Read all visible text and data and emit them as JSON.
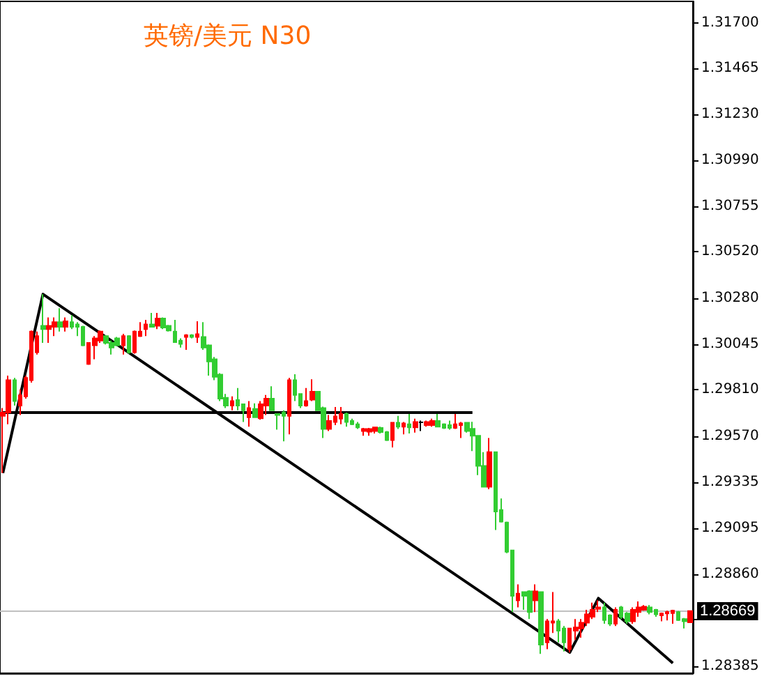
{
  "chart_data": {
    "type": "candlestick",
    "title": "英镑/美元 N30",
    "tick_labels": "y",
    "marker": "none",
    "line_style": "solid",
    "categories": [
      null,
      null,
      null,
      null,
      null,
      null,
      null,
      null,
      null,
      null,
      null,
      null,
      null,
      null,
      null,
      null,
      null,
      null,
      null,
      null,
      null,
      null,
      null,
      null,
      null,
      null,
      null,
      null,
      null,
      null,
      null,
      null,
      null,
      null,
      null,
      null,
      null,
      null,
      null,
      null,
      null,
      null,
      null,
      null,
      null,
      null,
      null,
      null,
      null,
      null,
      null,
      null,
      null,
      null,
      null,
      null,
      null,
      null,
      null,
      null,
      null,
      null,
      null,
      null,
      null,
      null,
      null,
      null,
      null,
      null,
      null,
      null,
      null,
      null,
      null,
      null,
      null,
      null,
      null,
      null,
      null,
      null,
      null,
      null,
      null,
      null,
      null,
      null,
      null,
      null,
      null,
      null,
      null,
      null,
      null,
      null,
      null,
      null,
      null,
      null,
      null,
      null,
      null,
      null,
      null,
      null,
      null,
      null,
      null,
      null,
      null,
      null,
      null,
      null,
      null,
      null,
      null,
      null,
      null,
      null,
      null
    ],
    "ylim": [
      1.2835,
      1.3181
    ],
    "yticks": [
      {
        "value": 1.317,
        "label": "1.31700"
      },
      {
        "value": 1.31465,
        "label": "1.31465"
      },
      {
        "value": 1.3123,
        "label": "1.31230"
      },
      {
        "value": 1.3099,
        "label": "1.30990"
      },
      {
        "value": 1.30755,
        "label": "1.30755"
      },
      {
        "value": 1.3052,
        "label": "1.30520"
      },
      {
        "value": 1.3028,
        "label": "1.30280"
      },
      {
        "value": 1.30045,
        "label": "1.30045"
      },
      {
        "value": 1.2981,
        "label": "1.29810"
      },
      {
        "value": 1.2957,
        "label": "1.29570"
      },
      {
        "value": 1.29335,
        "label": "1.29335"
      },
      {
        "value": 1.29095,
        "label": "1.29095"
      },
      {
        "value": 1.2886,
        "label": "1.28860"
      },
      {
        "value": 1.28625,
        "label": null
      },
      {
        "value": 1.28385,
        "label": "1.28385"
      }
    ],
    "ref_lines": [
      {
        "axis": "y",
        "value": 1.28669,
        "label": "1.28669",
        "color": "#c0c0c0"
      }
    ],
    "series": [
      {
        "ohlc": [
          [
            1.29675,
            1.29716,
            1.29381,
            1.29692
          ],
          [
            1.29692,
            1.29883,
            1.29632,
            1.29859
          ],
          [
            1.29859,
            1.29871,
            1.29728,
            1.29752
          ],
          [
            1.29728,
            1.29812,
            1.2968,
            1.29781
          ],
          [
            1.29776,
            1.29883,
            1.29764,
            1.29871
          ],
          [
            1.29859,
            1.30115,
            1.29847,
            1.3011
          ],
          [
            1.30003,
            1.3011,
            1.29991,
            1.30086
          ],
          [
            1.30139,
            1.30302,
            1.30051,
            1.30122
          ],
          [
            1.30122,
            1.30182,
            1.30051,
            1.30139
          ],
          [
            1.30134,
            1.30182,
            1.30086,
            1.30158
          ],
          [
            1.30158,
            1.3023,
            1.3011,
            1.30134
          ],
          [
            1.30134,
            1.30182,
            1.3011,
            1.30163
          ],
          [
            1.30158,
            1.30194,
            1.30122,
            1.30134
          ],
          [
            1.30146,
            1.30158,
            1.30086,
            1.30134
          ],
          [
            1.30134,
            1.30139,
            1.30034,
            1.30039
          ],
          [
            1.29943,
            1.30055,
            1.29938,
            1.30051
          ],
          [
            1.30039,
            1.30086,
            1.29967,
            1.30075
          ],
          [
            1.30063,
            1.30115,
            1.30051,
            1.3011
          ],
          [
            1.30086,
            1.30091,
            1.30043,
            1.30051
          ],
          [
            1.30051,
            1.30063,
            1.29991,
            1.30027
          ],
          [
            1.30075,
            1.30082,
            1.30034,
            1.30039
          ],
          [
            1.30039,
            1.30098,
            1.29991,
            1.30086
          ],
          [
            1.30086,
            1.30091,
            1.29996,
            1.30003
          ],
          [
            1.30003,
            1.30115,
            1.29996,
            1.3011
          ],
          [
            1.30086,
            1.30158,
            1.30082,
            1.3011
          ],
          [
            1.30122,
            1.3017,
            1.30086,
            1.30146
          ],
          [
            1.30146,
            1.30206,
            1.3013,
            1.30134
          ],
          [
            1.30139,
            1.30206,
            1.30122,
            1.30177
          ],
          [
            1.30177,
            1.30182,
            1.30122,
            1.3013
          ],
          [
            1.30139,
            1.30144,
            1.3011,
            1.30115
          ],
          [
            1.3011,
            1.3017,
            1.30051,
            1.30055
          ],
          [
            1.30063,
            1.30075,
            1.30027,
            1.30046
          ],
          [
            1.30082,
            1.30096,
            1.30015,
            1.30091
          ],
          [
            1.30091,
            1.30096,
            1.30075,
            1.30082
          ],
          [
            1.30082,
            1.30163,
            1.30051,
            1.30096
          ],
          [
            1.30082,
            1.30158,
            1.30015,
            1.30027
          ],
          [
            1.30039,
            1.30043,
            1.29883,
            1.29955
          ],
          [
            1.29967,
            1.29979,
            1.29859,
            1.29876
          ],
          [
            1.29888,
            1.29895,
            1.29752,
            1.29764
          ],
          [
            1.29769,
            1.29788,
            1.29716,
            1.29728
          ],
          [
            1.29728,
            1.29776,
            1.29704,
            1.29752
          ],
          [
            1.29757,
            1.29819,
            1.29704,
            1.29728
          ],
          [
            1.29735,
            1.29735,
            1.29644,
            1.29704
          ],
          [
            1.29668,
            1.29752,
            1.2962,
            1.29716
          ],
          [
            1.29711,
            1.2974,
            1.29668,
            1.29668
          ],
          [
            1.29663,
            1.29752,
            1.29656,
            1.29735
          ],
          [
            1.29728,
            1.29783,
            1.2968,
            1.29764
          ],
          [
            1.29764,
            1.29828,
            1.29704,
            1.29704
          ],
          [
            1.29685,
            1.29685,
            1.29604,
            1.2968
          ],
          [
            1.29692,
            1.29704,
            1.29544,
            1.29675
          ],
          [
            1.29675,
            1.29871,
            1.2958,
            1.29859
          ],
          [
            1.29859,
            1.2989,
            1.29752,
            1.29783
          ],
          [
            1.29788,
            1.29788,
            1.29716,
            1.29728
          ],
          [
            1.29728,
            1.29819,
            1.29723,
            1.29752
          ],
          [
            1.29759,
            1.29864,
            1.29752,
            1.298
          ],
          [
            1.298,
            1.29804,
            1.29704,
            1.29704
          ],
          [
            1.29716,
            1.29723,
            1.29561,
            1.29608
          ],
          [
            1.29608,
            1.2968,
            1.29597,
            1.29649
          ],
          [
            1.29644,
            1.29721,
            1.29628,
            1.29673
          ],
          [
            1.29661,
            1.29721,
            1.29632,
            1.29685
          ],
          [
            1.29685,
            1.29692,
            1.2962,
            1.29644
          ],
          [
            1.29649,
            1.29661,
            1.29628,
            1.29632
          ],
          [
            1.29632,
            1.29644,
            1.29608,
            1.29616
          ],
          [
            1.29597,
            1.29613,
            1.29573,
            1.29608
          ],
          [
            1.29594,
            1.29613,
            1.29573,
            1.29608
          ],
          [
            1.29597,
            1.2962,
            1.29585,
            1.29616
          ],
          [
            1.29613,
            1.2962,
            1.29585,
            1.29592
          ],
          [
            1.29592,
            1.29597,
            1.29546,
            1.29551
          ],
          [
            1.29551,
            1.29644,
            1.29513,
            1.2964
          ],
          [
            1.2964,
            1.29675,
            1.29608,
            1.2962
          ],
          [
            1.2962,
            1.29644,
            1.2958,
            1.29637
          ],
          [
            1.29632,
            1.29685,
            1.29585,
            1.29616
          ],
          [
            1.29616,
            1.29661,
            1.29589,
            1.29644
          ],
          [
            1.29642,
            1.29651,
            1.29597,
            1.29642
          ],
          [
            1.29628,
            1.29651,
            1.2962,
            1.29644
          ],
          [
            1.29628,
            1.29661,
            1.2962,
            1.29649
          ],
          [
            1.29649,
            1.29685,
            1.2962,
            1.2962
          ],
          [
            1.29632,
            1.29637,
            1.29608,
            1.29613
          ],
          [
            1.29628,
            1.29651,
            1.29604,
            1.29613
          ],
          [
            1.29613,
            1.29685,
            1.29608,
            1.29632
          ],
          [
            1.29628,
            1.29644,
            1.29561,
            1.29637
          ],
          [
            1.2964,
            1.29644,
            1.29589,
            1.29597
          ],
          [
            1.29609,
            1.29645,
            1.29494,
            1.29573
          ],
          [
            1.29573,
            1.29573,
            1.2937,
            1.29418
          ],
          [
            1.29418,
            1.29489,
            1.2931,
            1.2931
          ],
          [
            1.2931,
            1.29561,
            1.29298,
            1.29489
          ],
          [
            1.29489,
            1.29489,
            1.29088,
            1.29183
          ],
          [
            1.29191,
            1.2925,
            1.29126,
            1.29131
          ],
          [
            1.29126,
            1.29131,
            1.28968,
            1.28975
          ],
          [
            1.28983,
            1.28983,
            1.28665,
            1.28748
          ],
          [
            1.28725,
            1.28808,
            1.28689,
            1.2876
          ],
          [
            1.28768,
            1.28772,
            1.28677,
            1.28748
          ],
          [
            1.28772,
            1.28777,
            1.28629,
            1.28665
          ],
          [
            1.28725,
            1.28808,
            1.28665,
            1.28772
          ],
          [
            1.28768,
            1.28768,
            1.2845,
            1.28497
          ],
          [
            1.28509,
            1.28629,
            1.28474,
            1.28617
          ],
          [
            1.2861,
            1.28768,
            1.28557,
            1.28617
          ],
          [
            1.28617,
            1.28629,
            1.28509,
            1.28569
          ],
          [
            1.28581,
            1.28593,
            1.28462,
            1.28509
          ],
          [
            1.28474,
            1.28581,
            1.28457,
            1.28581
          ],
          [
            1.28569,
            1.28629,
            1.28521,
            1.28586
          ],
          [
            1.28581,
            1.28629,
            1.28533,
            1.2861
          ],
          [
            1.2861,
            1.28677,
            1.28593,
            1.28653
          ],
          [
            1.28641,
            1.28713,
            1.28629,
            1.28677
          ],
          [
            1.28681,
            1.28725,
            1.28665,
            1.28689
          ],
          [
            1.28689,
            1.28713,
            1.28605,
            1.28624
          ],
          [
            1.28648,
            1.28653,
            1.28593,
            1.28605
          ],
          [
            1.28605,
            1.28689,
            1.28593,
            1.28677
          ],
          [
            1.28689,
            1.28696,
            1.28629,
            1.28641
          ],
          [
            1.28658,
            1.28665,
            1.28605,
            1.28617
          ],
          [
            1.28617,
            1.28689,
            1.28605,
            1.28677
          ],
          [
            1.28665,
            1.2872,
            1.28641,
            1.28689
          ],
          [
            1.28677,
            1.28701,
            1.28672,
            1.28693
          ],
          [
            1.28689,
            1.28701,
            1.28653,
            1.28665
          ],
          [
            1.28677,
            1.28681,
            1.28641,
            1.28653
          ],
          [
            1.28648,
            1.28662,
            1.28617,
            1.28658
          ],
          [
            1.28658,
            1.28672,
            1.28622,
            1.28665
          ],
          [
            1.2866,
            1.28677,
            1.28605,
            1.28672
          ],
          [
            1.28665,
            1.2867,
            1.28619,
            1.28624
          ],
          [
            1.28629,
            1.28634,
            1.28581,
            1.28617
          ],
          [
            1.28612,
            1.2867,
            1.28612,
            1.2867
          ]
        ],
        "colors": [
          "#ff0000",
          "#ff0000",
          "#32cd32",
          "#ff0000",
          "#ff0000",
          "#ff0000",
          "#ff0000",
          "#32cd32",
          "#ff0000",
          "#ff0000",
          "#32cd32",
          "#ff0000",
          "#32cd32",
          "#32cd32",
          "#32cd32",
          "#ff0000",
          "#ff0000",
          "#ff0000",
          "#32cd32",
          "#32cd32",
          "#32cd32",
          "#ff0000",
          "#32cd32",
          "#ff0000",
          "#ff0000",
          "#ff0000",
          "#32cd32",
          "#ff0000",
          "#32cd32",
          "#32cd32",
          "#32cd32",
          "#32cd32",
          "#ff0000",
          "#32cd32",
          "#ff0000",
          "#32cd32",
          "#32cd32",
          "#32cd32",
          "#32cd32",
          "#32cd32",
          "#ff0000",
          "#32cd32",
          "#32cd32",
          "#ff0000",
          "#32cd32",
          "#ff0000",
          "#ff0000",
          "#32cd32",
          "#32cd32",
          "#32cd32",
          "#ff0000",
          "#32cd32",
          "#32cd32",
          "#ff0000",
          "#ff0000",
          "#32cd32",
          "#32cd32",
          "#ff0000",
          "#ff0000",
          "#ff0000",
          "#32cd32",
          "#32cd32",
          "#32cd32",
          "#ff0000",
          "#ff0000",
          "#ff0000",
          "#32cd32",
          "#32cd32",
          "#ff0000",
          "#32cd32",
          "#ff0000",
          "#32cd32",
          "#ff0000",
          "#000000",
          "#ff0000",
          "#ff0000",
          "#32cd32",
          "#32cd32",
          "#32cd32",
          "#ff0000",
          "#ff0000",
          "#32cd32",
          "#32cd32",
          "#32cd32",
          "#32cd32",
          "#ff0000",
          "#32cd32",
          "#32cd32",
          "#32cd32",
          "#32cd32",
          "#ff0000",
          "#32cd32",
          "#32cd32",
          "#ff0000",
          "#32cd32",
          "#ff0000",
          "#ff0000",
          "#32cd32",
          "#32cd32",
          "#ff0000",
          "#ff0000",
          "#ff0000",
          "#ff0000",
          "#ff0000",
          "#ff0000",
          "#32cd32",
          "#32cd32",
          "#ff0000",
          "#32cd32",
          "#32cd32",
          "#ff0000",
          "#ff0000",
          "#ff0000",
          "#32cd32",
          "#32cd32",
          "#ff0000",
          "#ff0000",
          "#ff0000",
          "#32cd32",
          "#32cd32",
          "#ff0000"
        ]
      },
      {
        "type": "line",
        "color": "#000000",
        "values": [
          1.29381,
          null,
          null,
          null,
          null,
          null,
          null,
          1.30302,
          null,
          null,
          null,
          null,
          null,
          null,
          null,
          null,
          null,
          null,
          null,
          null,
          null,
          null,
          null,
          null,
          null,
          null,
          null,
          null,
          null,
          null,
          null,
          null,
          null,
          null,
          null,
          null,
          null,
          null,
          null,
          null,
          null,
          null,
          null,
          null,
          null,
          null,
          null,
          null,
          null,
          null,
          null,
          null,
          null,
          null,
          null,
          null,
          null,
          null,
          null,
          null,
          null,
          null,
          null,
          null,
          null,
          null,
          null,
          null,
          null,
          null,
          null,
          null,
          null,
          null,
          null,
          null,
          null,
          null,
          null,
          null,
          null,
          null,
          null,
          null,
          null,
          null,
          null,
          null,
          null,
          null,
          null,
          null,
          null,
          null,
          null,
          null,
          null,
          null,
          null,
          1.28457,
          null,
          null,
          null,
          null,
          1.28736,
          null,
          null,
          null,
          null,
          null,
          null,
          null,
          null,
          null,
          null,
          null,
          null,
          1.28402,
          null,
          null,
          null
        ]
      },
      {
        "type": "line",
        "color": "#000000",
        "values": [
          1.29692,
          null,
          null,
          null,
          null,
          null,
          null,
          null,
          null,
          null,
          null,
          null,
          null,
          null,
          null,
          null,
          null,
          null,
          null,
          null,
          null,
          null,
          null,
          null,
          null,
          null,
          null,
          null,
          null,
          null,
          null,
          null,
          null,
          null,
          null,
          null,
          null,
          null,
          null,
          null,
          null,
          null,
          null,
          null,
          null,
          null,
          null,
          null,
          null,
          null,
          null,
          null,
          null,
          null,
          null,
          null,
          null,
          null,
          null,
          null,
          null,
          null,
          null,
          null,
          null,
          null,
          null,
          null,
          null,
          null,
          null,
          null,
          null,
          null,
          null,
          null,
          null,
          null,
          null,
          null,
          null,
          null,
          1.29692,
          null,
          null,
          null,
          null,
          null,
          null,
          null,
          null,
          null,
          null,
          null,
          null,
          null,
          null,
          null,
          null,
          null,
          null,
          null,
          null,
          null,
          null,
          null,
          null,
          null,
          null,
          null,
          null,
          null,
          null,
          null,
          null,
          null,
          null,
          null,
          null,
          null,
          null
        ]
      }
    ]
  }
}
